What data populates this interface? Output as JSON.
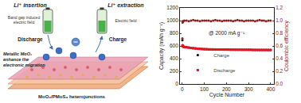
{
  "chart_data": {
    "type": "scatter",
    "x_label": "Cycle Number",
    "y_label": "Capacity (mAh g⁻¹)",
    "y2_label": "Coulombic efficiency",
    "annotations": [
      {
        "text": "@ 2000 mA g⁻¹"
      }
    ],
    "x": [
      1,
      2,
      3,
      5,
      10,
      20,
      30,
      40,
      50,
      60,
      70,
      80,
      90,
      100,
      110,
      120,
      130,
      140,
      150,
      160,
      170,
      180,
      190,
      200,
      210,
      220,
      230,
      240,
      250,
      260,
      270,
      280,
      290,
      300,
      310,
      320,
      330,
      340,
      350,
      360,
      370,
      380,
      390,
      400
    ],
    "series": [
      {
        "name": "Charge",
        "color": "#000000",
        "marker": "circle",
        "values": [
          690,
          612,
          600,
          592,
          585,
          580,
          576,
          570,
          565,
          562,
          558,
          556,
          553,
          551,
          550,
          548,
          548,
          547,
          546,
          545,
          545,
          544,
          544,
          543,
          543,
          542,
          542,
          542,
          541,
          541,
          541,
          540,
          540,
          540,
          540,
          539,
          539,
          539,
          539,
          538,
          538,
          538,
          537,
          537
        ]
      },
      {
        "name": "Discharge",
        "color": "#e8141c",
        "marker": "square",
        "values": [
          600,
          605,
          595,
          588,
          582,
          578,
          574,
          568,
          563,
          560,
          556,
          554,
          551,
          549,
          548,
          547,
          546,
          545,
          544,
          544,
          543,
          543,
          542,
          542,
          541,
          541,
          541,
          540,
          540,
          540,
          539,
          539,
          539,
          539,
          538,
          538,
          538,
          538,
          537,
          537,
          537,
          537,
          536,
          536
        ]
      },
      {
        "name": "Coulombic efficiency",
        "color": "#8b1a1a",
        "marker": "circle",
        "axis": "y2",
        "values": [
          0.72,
          0.97,
          0.99,
          0.99,
          1.0,
          1.0,
          0.99,
          1.0,
          1.01,
          1.0,
          1.0,
          0.99,
          1.0,
          1.0,
          1.0,
          1.0,
          0.99,
          1.0,
          1.01,
          1.0,
          1.0,
          0.99,
          1.0,
          1.0,
          1.0,
          1.0,
          0.99,
          1.0,
          1.01,
          1.0,
          1.0,
          0.99,
          1.0,
          1.0,
          1.0,
          1.0,
          0.99,
          1.0,
          1.01,
          1.0,
          1.0,
          0.99,
          1.0,
          1.0
        ]
      }
    ],
    "xlim": [
      -10,
      415
    ],
    "xticks": [
      0,
      100,
      200,
      300,
      400
    ],
    "ylim": [
      0,
      1200
    ],
    "yticks": [
      0,
      200,
      400,
      600,
      800,
      1000,
      1200
    ],
    "y2lim": [
      0,
      1.2
    ],
    "y2ticks": [
      {
        "value": 0,
        "label": "0.0"
      },
      0.2,
      0.4,
      0.6,
      0.8,
      {
        "value": 1,
        "label": "1.0"
      },
      1.2
    ],
    "legend": "lower left",
    "grid": false
  },
  "diagram": {
    "insertion": "Li⁺ insertion",
    "extraction": "Li⁺ extraction",
    "band_gap_field": [
      "Band gap induced",
      "electric field"
    ],
    "electric_field": "Electric field",
    "discharge": "Discharge",
    "charge": "Charge",
    "metallic_note": [
      "Metallic MoO₂",
      "enhance the",
      "electronic migration"
    ],
    "heterojunction": "MoO₂/PMoS₄ heterojunctions"
  }
}
